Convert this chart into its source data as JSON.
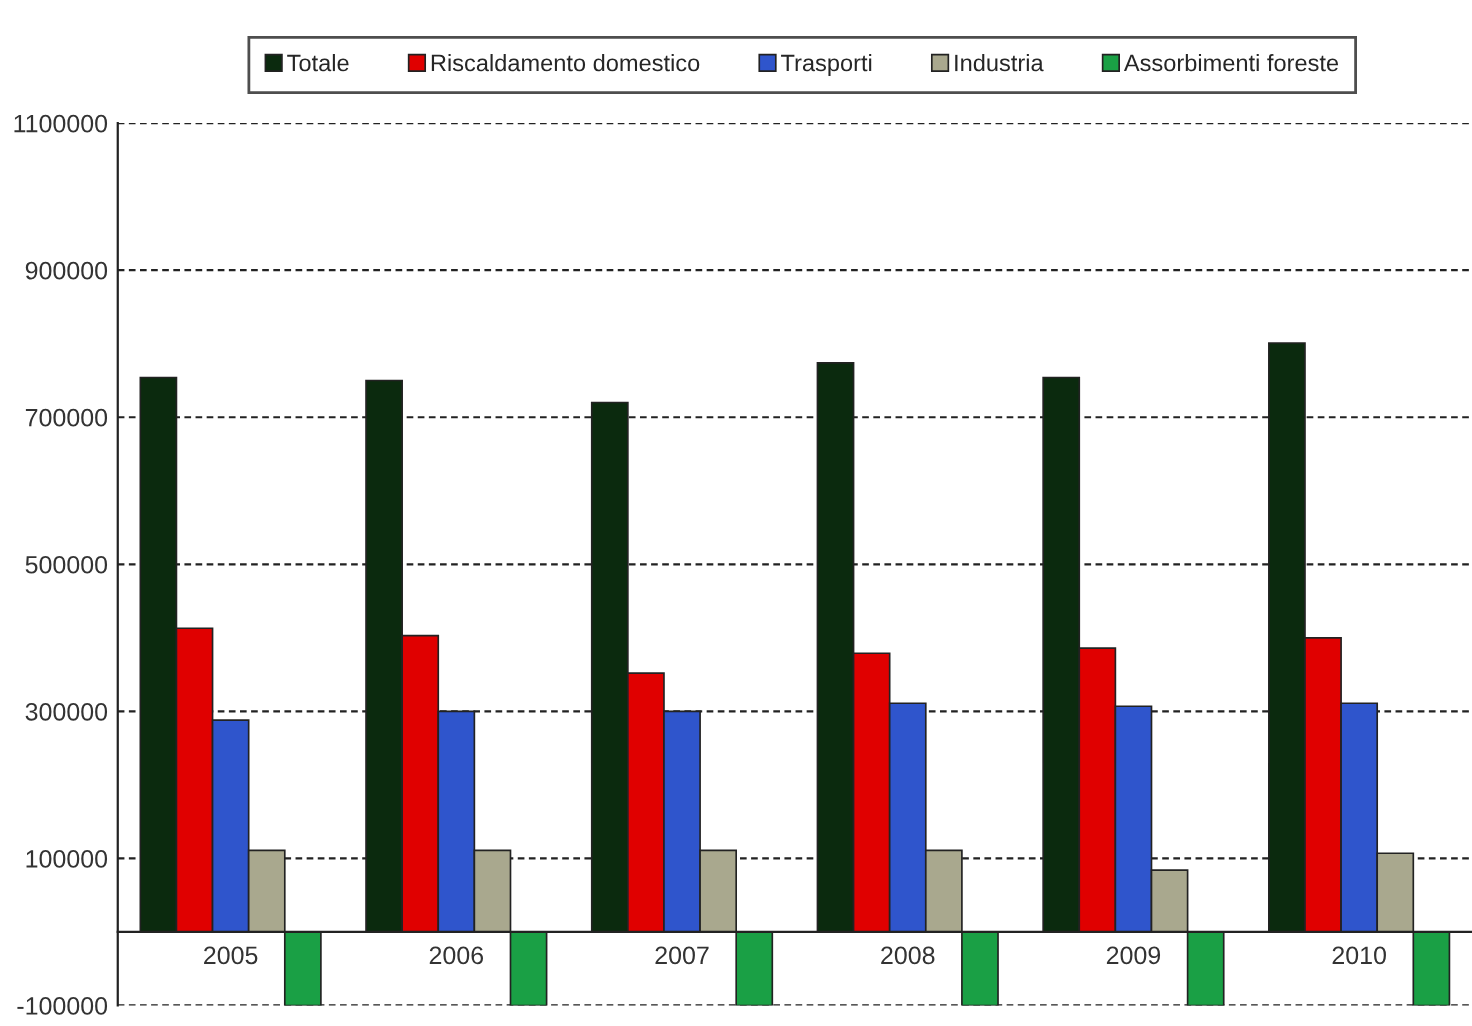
{
  "chart_data": {
    "type": "bar",
    "categories": [
      "2005",
      "2006",
      "2007",
      "2008",
      "2009",
      "2010"
    ],
    "series": [
      {
        "name": "Totale",
        "color": "#0b2a0e",
        "values": [
          754000,
          750000,
          720000,
          774000,
          754000,
          801000
        ]
      },
      {
        "name": "Riscaldamento domestico",
        "color": "#e00000",
        "values": [
          413000,
          403000,
          352000,
          379000,
          386000,
          400000
        ]
      },
      {
        "name": "Trasporti",
        "color": "#2f55cc",
        "values": [
          288000,
          300000,
          300000,
          311000,
          307000,
          311000
        ]
      },
      {
        "name": "Industria",
        "color": "#a9a88e",
        "values": [
          111000,
          111000,
          111000,
          111000,
          84000,
          107000
        ]
      },
      {
        "name": "Assorbimenti foreste",
        "color": "#1aa045",
        "values": [
          -100000,
          -100000,
          -100000,
          -100000,
          -100000,
          -100000
        ]
      }
    ],
    "ylim": [
      -100000,
      1100000
    ],
    "yticks": [
      -100000,
      100000,
      300000,
      500000,
      700000,
      900000,
      1100000
    ],
    "grid": "y",
    "legend": "top"
  }
}
